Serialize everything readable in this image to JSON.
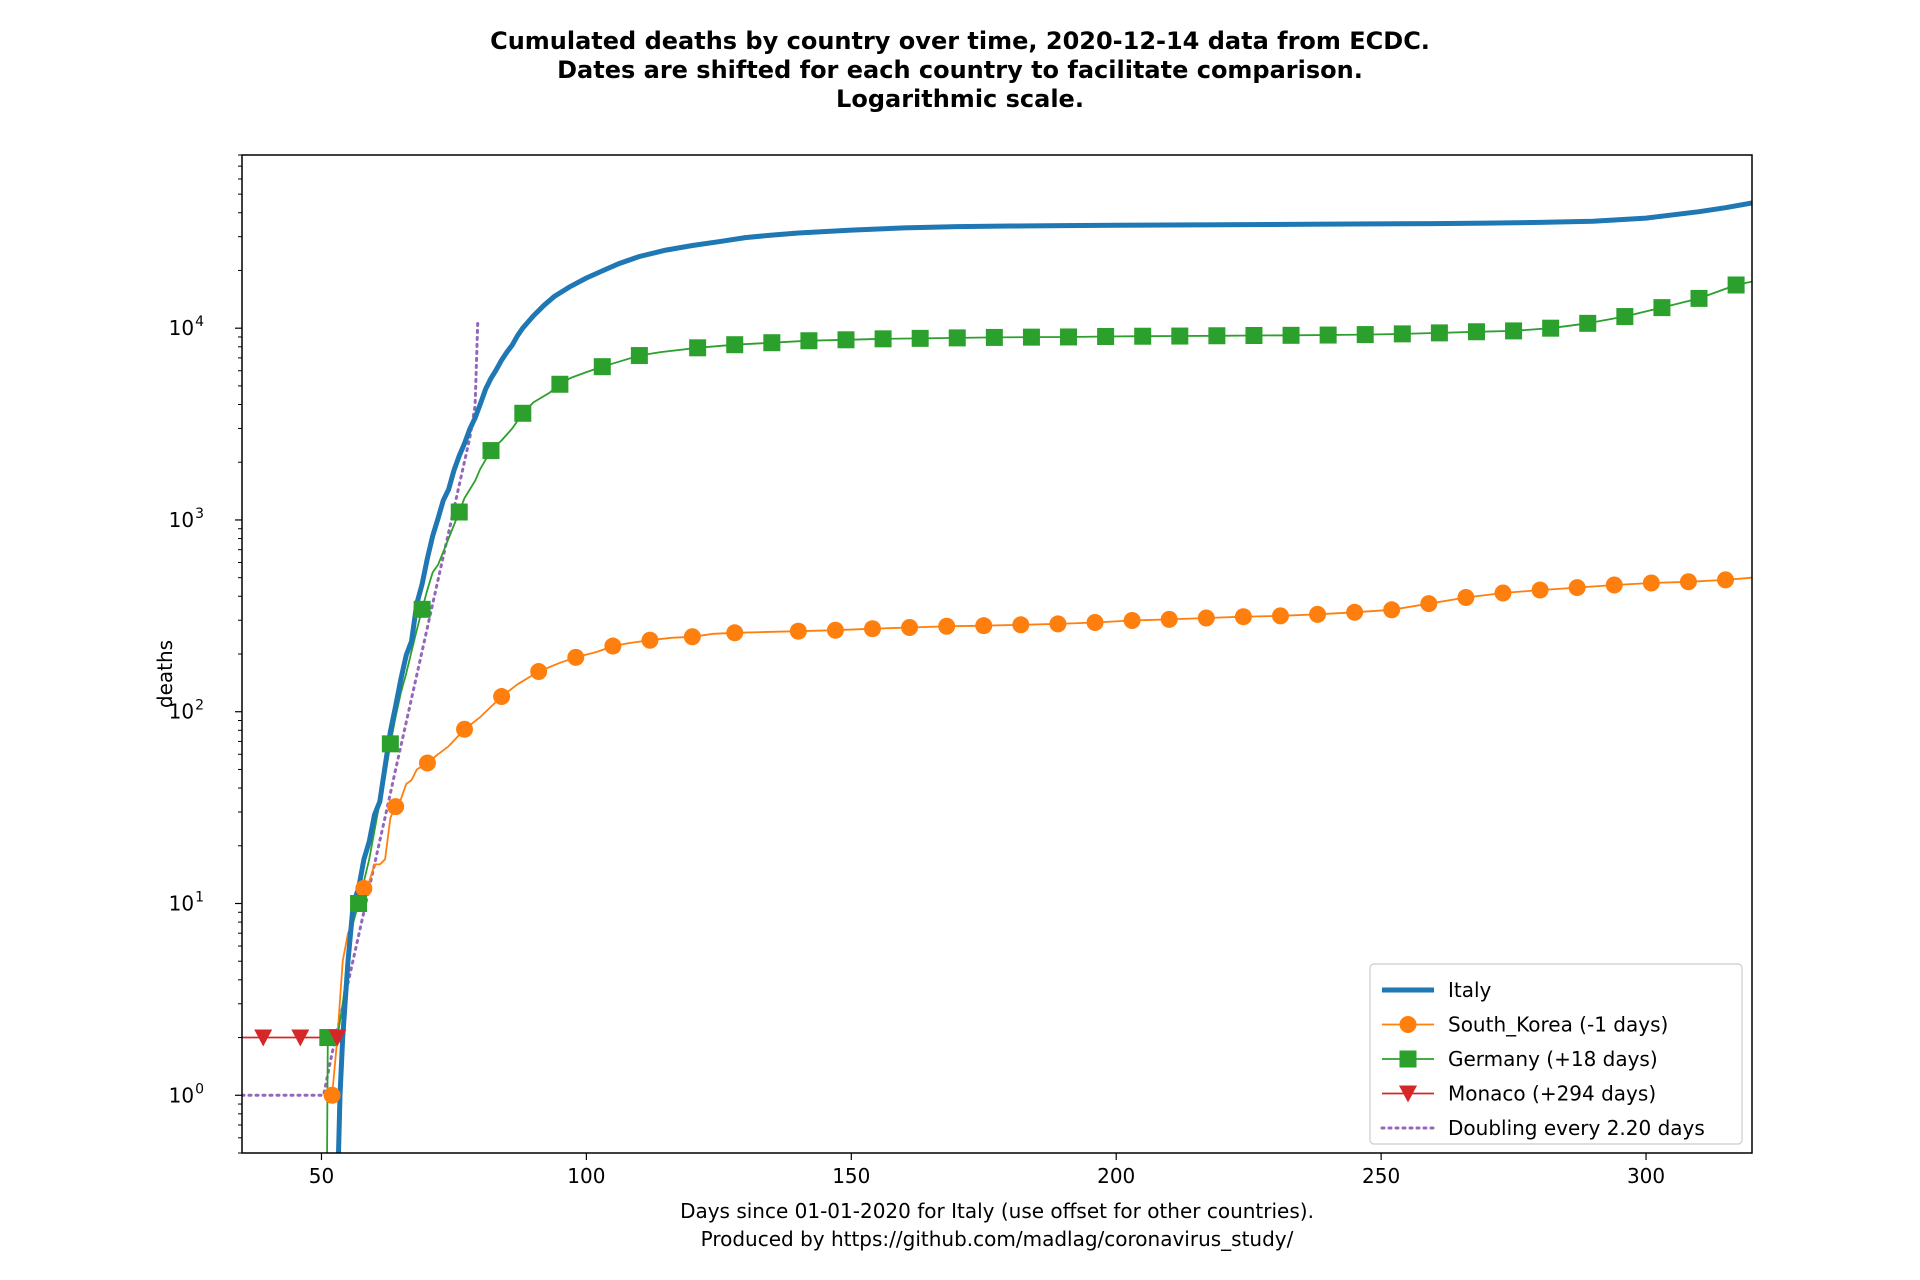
{
  "chart_data": {
    "type": "line",
    "title_lines": [
      "Cumulated deaths by country over time, 2020-12-14 data from ECDC.",
      "Dates are shifted for each country to facilitate comparison.",
      "Logarithmic scale."
    ],
    "xlabel_lines": [
      "Days since 01-01-2020 for Italy (use offset for other countries).",
      "Produced by https://github.com/madlag/coronavirus_study/"
    ],
    "ylabel": "deaths",
    "yscale": "log",
    "xlim": [
      35,
      320
    ],
    "ylim": [
      0.5,
      80000
    ],
    "x_ticks": [
      50,
      100,
      150,
      200,
      250,
      300
    ],
    "y_ticks": [
      {
        "value": 1,
        "base": "10",
        "exp": "0"
      },
      {
        "value": 10,
        "base": "10",
        "exp": "1"
      },
      {
        "value": 100,
        "base": "10",
        "exp": "2"
      },
      {
        "value": 1000,
        "base": "10",
        "exp": "3"
      },
      {
        "value": 10000,
        "base": "10",
        "exp": "4"
      }
    ],
    "legend_position": "lower-right",
    "series": [
      {
        "name": "Italy",
        "color": "#1f77b4",
        "style": "thick-line",
        "marker": "none",
        "points": [
          [
            53,
            0.3
          ],
          [
            53.5,
            1
          ],
          [
            54,
            2
          ],
          [
            55,
            5
          ],
          [
            56,
            10
          ],
          [
            57,
            12
          ],
          [
            58,
            17
          ],
          [
            59,
            21
          ],
          [
            60,
            29
          ],
          [
            61,
            34
          ],
          [
            62,
            52
          ],
          [
            63,
            79
          ],
          [
            64,
            107
          ],
          [
            65,
            148
          ],
          [
            66,
            197
          ],
          [
            67,
            233
          ],
          [
            68,
            366
          ],
          [
            69,
            463
          ],
          [
            70,
            631
          ],
          [
            71,
            827
          ],
          [
            72,
            1016
          ],
          [
            73,
            1266
          ],
          [
            74,
            1441
          ],
          [
            75,
            1809
          ],
          [
            76,
            2158
          ],
          [
            77,
            2503
          ],
          [
            78,
            2978
          ],
          [
            79,
            3405
          ],
          [
            80,
            4032
          ],
          [
            81,
            4825
          ],
          [
            82,
            5476
          ],
          [
            83,
            6077
          ],
          [
            84,
            6820
          ],
          [
            85,
            7503
          ],
          [
            86,
            8165
          ],
          [
            87,
            9134
          ],
          [
            88,
            10023
          ],
          [
            90,
            11591
          ],
          [
            92,
            13155
          ],
          [
            94,
            14681
          ],
          [
            97,
            16523
          ],
          [
            100,
            18279
          ],
          [
            103,
            19899
          ],
          [
            106,
            21645
          ],
          [
            110,
            23660
          ],
          [
            115,
            25549
          ],
          [
            120,
            26977
          ],
          [
            125,
            28236
          ],
          [
            130,
            29684
          ],
          [
            135,
            30560
          ],
          [
            140,
            31368
          ],
          [
            150,
            32486
          ],
          [
            160,
            33340
          ],
          [
            170,
            33846
          ],
          [
            180,
            34110
          ],
          [
            190,
            34270
          ],
          [
            200,
            34420
          ],
          [
            220,
            34600
          ],
          [
            240,
            34900
          ],
          [
            260,
            35100
          ],
          [
            270,
            35300
          ],
          [
            280,
            35600
          ],
          [
            290,
            36100
          ],
          [
            300,
            37500
          ],
          [
            310,
            40500
          ],
          [
            315,
            42500
          ],
          [
            320,
            45000
          ]
        ]
      },
      {
        "name": "South_Korea (-1 days)",
        "color": "#ff7f0e",
        "style": "line",
        "marker": "circle",
        "points": [
          [
            52,
            1
          ],
          [
            53,
            2
          ],
          [
            54,
            5
          ],
          [
            55,
            7
          ],
          [
            56,
            8
          ],
          [
            57,
            11
          ],
          [
            58,
            12
          ],
          [
            59,
            13
          ],
          [
            60,
            16
          ],
          [
            61,
            16
          ],
          [
            62,
            17
          ],
          [
            63,
            28
          ],
          [
            64,
            32
          ],
          [
            65,
            35
          ],
          [
            66,
            42
          ],
          [
            67,
            44
          ],
          [
            68,
            50
          ],
          [
            70,
            54
          ],
          [
            72,
            60
          ],
          [
            74,
            66
          ],
          [
            77,
            81
          ],
          [
            80,
            94
          ],
          [
            84,
            120
          ],
          [
            87,
            139
          ],
          [
            91,
            162
          ],
          [
            95,
            180
          ],
          [
            98,
            192
          ],
          [
            102,
            205
          ],
          [
            105,
            220
          ],
          [
            108,
            228
          ],
          [
            112,
            236
          ],
          [
            116,
            243
          ],
          [
            120,
            246
          ],
          [
            124,
            255
          ],
          [
            128,
            258
          ],
          [
            133,
            260
          ],
          [
            140,
            263
          ],
          [
            147,
            266
          ],
          [
            154,
            271
          ],
          [
            161,
            275
          ],
          [
            168,
            279
          ],
          [
            175,
            281
          ],
          [
            182,
            284
          ],
          [
            189,
            287
          ],
          [
            196,
            292
          ],
          [
            203,
            299
          ],
          [
            210,
            303
          ],
          [
            217,
            308
          ],
          [
            224,
            313
          ],
          [
            231,
            316
          ],
          [
            238,
            322
          ],
          [
            245,
            330
          ],
          [
            252,
            340
          ],
          [
            259,
            366
          ],
          [
            266,
            394
          ],
          [
            273,
            416
          ],
          [
            280,
            431
          ],
          [
            287,
            444
          ],
          [
            294,
            458
          ],
          [
            301,
            469
          ],
          [
            308,
            476
          ],
          [
            315,
            487
          ],
          [
            320,
            500
          ]
        ]
      },
      {
        "name": "Germany (+18 days)",
        "color": "#2ca02c",
        "style": "line",
        "marker": "square",
        "points": [
          [
            51,
            0.3
          ],
          [
            51.2,
            2
          ],
          [
            53,
            2
          ],
          [
            54,
            3
          ],
          [
            55,
            5
          ],
          [
            56,
            8
          ],
          [
            57,
            10
          ],
          [
            58,
            13
          ],
          [
            59,
            17
          ],
          [
            60,
            24
          ],
          [
            61,
            34
          ],
          [
            62,
            46
          ],
          [
            63,
            68
          ],
          [
            64,
            94
          ],
          [
            65,
            126
          ],
          [
            66,
            158
          ],
          [
            67,
            206
          ],
          [
            68,
            267
          ],
          [
            69,
            342
          ],
          [
            70,
            433
          ],
          [
            71,
            533
          ],
          [
            72,
            583
          ],
          [
            74,
            800
          ],
          [
            76,
            1100
          ],
          [
            77,
            1300
          ],
          [
            79,
            1600
          ],
          [
            80,
            1850
          ],
          [
            82,
            2300
          ],
          [
            84,
            2600
          ],
          [
            86,
            3000
          ],
          [
            88,
            3600
          ],
          [
            90,
            4100
          ],
          [
            93,
            4600
          ],
          [
            95,
            5100
          ],
          [
            97,
            5500
          ],
          [
            100,
            5900
          ],
          [
            103,
            6300
          ],
          [
            107,
            6800
          ],
          [
            110,
            7200
          ],
          [
            114,
            7500
          ],
          [
            121,
            7900
          ],
          [
            128,
            8200
          ],
          [
            135,
            8400
          ],
          [
            142,
            8600
          ],
          [
            149,
            8700
          ],
          [
            156,
            8800
          ],
          [
            163,
            8850
          ],
          [
            170,
            8900
          ],
          [
            177,
            8950
          ],
          [
            184,
            8980
          ],
          [
            191,
            9000
          ],
          [
            198,
            9050
          ],
          [
            205,
            9080
          ],
          [
            212,
            9100
          ],
          [
            219,
            9130
          ],
          [
            226,
            9160
          ],
          [
            233,
            9180
          ],
          [
            240,
            9210
          ],
          [
            247,
            9260
          ],
          [
            254,
            9340
          ],
          [
            261,
            9450
          ],
          [
            268,
            9580
          ],
          [
            275,
            9680
          ],
          [
            282,
            10000
          ],
          [
            289,
            10600
          ],
          [
            296,
            11500
          ],
          [
            303,
            12800
          ],
          [
            310,
            14300
          ],
          [
            317,
            16800
          ],
          [
            320,
            17500
          ]
        ]
      },
      {
        "name": "Monaco (+294 days)",
        "color": "#d62728",
        "style": "line",
        "marker": "triangle-down",
        "points": [
          [
            35,
            2
          ],
          [
            39,
            2
          ],
          [
            46,
            2
          ],
          [
            53,
            2
          ]
        ]
      },
      {
        "name": "Doubling every 2.20 days",
        "color": "#9467bd",
        "style": "dotted",
        "marker": "none",
        "points": [
          [
            35,
            1
          ],
          [
            37,
            1
          ],
          [
            40,
            1
          ],
          [
            43,
            1
          ],
          [
            46,
            1
          ],
          [
            49,
            1
          ],
          [
            50,
            1
          ],
          [
            50.4,
            1
          ],
          [
            52,
            1.66
          ],
          [
            54,
            2.9
          ],
          [
            56,
            5.12
          ],
          [
            58,
            9.05
          ],
          [
            60,
            16
          ],
          [
            62,
            28.2
          ],
          [
            64,
            49.9
          ],
          [
            66,
            88.1
          ],
          [
            68,
            155.6
          ],
          [
            70,
            274.9
          ],
          [
            72,
            485.9
          ],
          [
            74,
            858.5
          ],
          [
            76,
            1517
          ],
          [
            78,
            2680
          ],
          [
            79,
            3960
          ],
          [
            79.5,
            11000
          ]
        ]
      }
    ]
  }
}
